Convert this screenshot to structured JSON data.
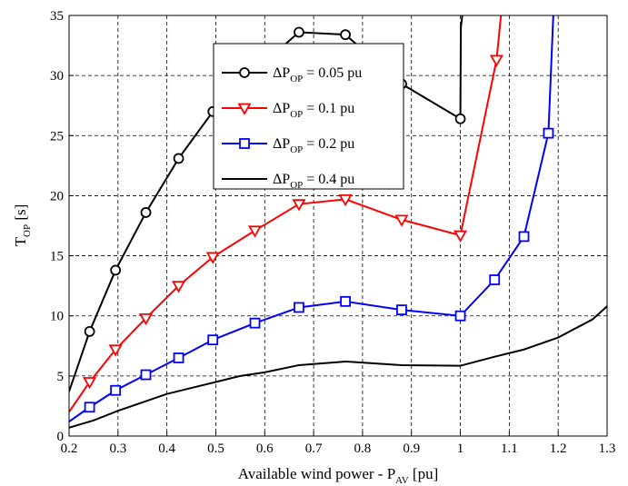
{
  "chart_data": {
    "type": "line",
    "title": "",
    "xlabel": {
      "main": "Available wind power - P",
      "sub": "AV",
      "unit": " [pu]"
    },
    "ylabel": {
      "main": "T",
      "sub": "OP",
      "unit": " [s]"
    },
    "xlim": [
      0.2,
      1.3
    ],
    "ylim": [
      0,
      35
    ],
    "xticks": [
      "0.2",
      "0.3",
      "0.4",
      "0.5",
      "0.6",
      "0.7",
      "0.8",
      "0.9",
      "1",
      "1.1",
      "1.2",
      "1.3"
    ],
    "yticks": [
      "0",
      "5",
      "10",
      "15",
      "20",
      "25",
      "30",
      "35"
    ],
    "grid": true,
    "legend_position": "top-center",
    "series": [
      {
        "legend": {
          "prefix": "ΔP",
          "sub": "OP",
          "suffix": " = 0.05 pu"
        },
        "color": "#000000",
        "marker": "circle",
        "x": [
          0.2,
          0.242,
          0.295,
          0.357,
          0.424,
          0.494,
          0.585,
          0.67,
          0.765,
          0.88,
          1.0,
          1.001,
          1.004
        ],
        "y": [
          3.7,
          8.7,
          13.8,
          18.6,
          23.1,
          27.0,
          30.6,
          33.6,
          33.4,
          29.3,
          26.4,
          34.0,
          35.0
        ],
        "marked": [
          false,
          true,
          true,
          true,
          true,
          true,
          true,
          true,
          true,
          true,
          true,
          false,
          false
        ]
      },
      {
        "legend": {
          "prefix": "ΔP",
          "sub": "OP",
          "suffix": " = 0.1 pu"
        },
        "color": "#ff0000",
        "marker": "triangle-down",
        "x": [
          0.2,
          0.242,
          0.295,
          0.357,
          0.424,
          0.494,
          0.58,
          0.67,
          0.765,
          0.88,
          1.0,
          1.074,
          1.083
        ],
        "y": [
          2.0,
          4.5,
          7.2,
          9.8,
          12.5,
          14.9,
          17.1,
          19.3,
          19.7,
          18.0,
          16.7,
          31.3,
          35.0
        ],
        "marked": [
          false,
          true,
          true,
          true,
          true,
          true,
          true,
          true,
          true,
          true,
          true,
          true,
          false
        ]
      },
      {
        "legend": {
          "prefix": "ΔP",
          "sub": "OP",
          "suffix": " = 0.2 pu"
        },
        "color": "#0000ff",
        "marker": "square",
        "x": [
          0.2,
          0.242,
          0.295,
          0.357,
          0.424,
          0.494,
          0.58,
          0.67,
          0.765,
          0.88,
          1.0,
          1.07,
          1.13,
          1.18,
          1.19
        ],
        "y": [
          1.2,
          2.4,
          3.8,
          5.1,
          6.5,
          8.0,
          9.4,
          10.7,
          11.2,
          10.5,
          10.0,
          13.0,
          16.6,
          25.2,
          35.0
        ],
        "marked": [
          false,
          true,
          true,
          true,
          true,
          true,
          true,
          true,
          true,
          true,
          true,
          true,
          true,
          true,
          false
        ]
      },
      {
        "legend": {
          "prefix": "ΔP",
          "sub": "OP",
          "suffix": " = 0.4 pu"
        },
        "color": "#000000",
        "marker": "none",
        "x": [
          0.2,
          0.25,
          0.3,
          0.35,
          0.4,
          0.45,
          0.5,
          0.55,
          0.6,
          0.67,
          0.765,
          0.88,
          1.0,
          1.07,
          1.13,
          1.2,
          1.27,
          1.3
        ],
        "y": [
          0.7,
          1.3,
          2.1,
          2.8,
          3.5,
          4.0,
          4.5,
          5.0,
          5.3,
          5.9,
          6.2,
          5.9,
          5.85,
          6.6,
          7.2,
          8.2,
          9.7,
          10.8
        ],
        "marked": []
      }
    ]
  }
}
